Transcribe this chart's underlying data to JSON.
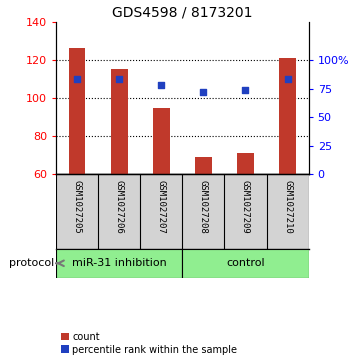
{
  "title": "GDS4598 / 8173201",
  "samples": [
    "GSM1027205",
    "GSM1027206",
    "GSM1027207",
    "GSM1027208",
    "GSM1027209",
    "GSM1027210"
  ],
  "counts": [
    126,
    115,
    95,
    69,
    71,
    121
  ],
  "percentile_ranks": [
    110,
    110,
    107,
    103,
    104,
    110
  ],
  "ylim": [
    60,
    140
  ],
  "yticks_left": [
    60,
    80,
    100,
    120,
    140
  ],
  "yticks_right_labels": [
    "0",
    "25",
    "50",
    "75",
    "100%"
  ],
  "yticks_right_vals": [
    60,
    75,
    90,
    105,
    120
  ],
  "bar_color": "#c0392b",
  "dot_color": "#2040c0",
  "protocol_groups": [
    {
      "label": "miR-31 inhibition",
      "indices": [
        0,
        1,
        2
      ],
      "color": "#90ee90"
    },
    {
      "label": "control",
      "indices": [
        3,
        4,
        5
      ],
      "color": "#90ee90"
    }
  ],
  "protocol_label": "protocol",
  "legend_count": "count",
  "legend_percentile": "percentile rank within the sample",
  "bar_width": 0.4,
  "background_label": "#d3d3d3",
  "grid_yticks": [
    80,
    100,
    120
  ]
}
